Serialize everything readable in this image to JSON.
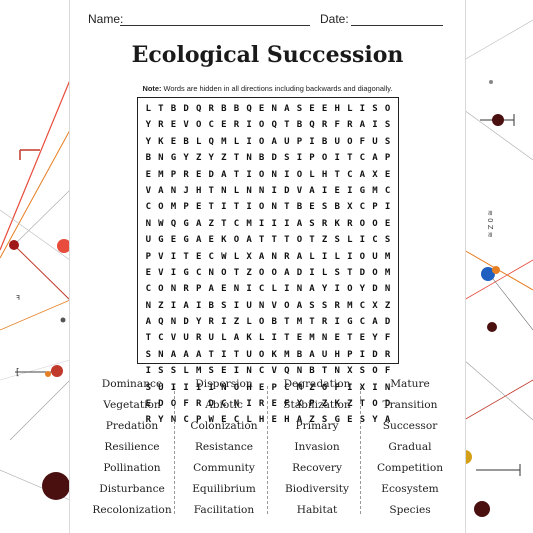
{
  "header": {
    "name_label": "Name:",
    "date_label": "Date:"
  },
  "title": "Ecological Succession",
  "note": {
    "prefix": "Note:",
    "text": " Words are hidden in all directions including backwards and diagonally."
  },
  "grid": [
    "LTBDQRBBQENASEEHLISO",
    "YREVOCERIOQTBQRFRAIS",
    "YKEBLQMLIOAUPIBUOFUS",
    "BNGYZYZTNBDSIPOITCAP",
    "EMPREDATIONIOLHTCAXE",
    "VANJHTNLNNIDVAIEIGMC",
    "COMPETITIONTBESBXCPI",
    "NWQGAZTCMIIIASRKROOE",
    "UGEGAEKOATTTOTZSLICS",
    "PVITECWLXANRALILIOUM",
    "EVIGCNOTZOOADILSTDOM",
    "CONRPAENICLINAYIOYDN",
    "NZIAIBSIUNVOASSRMCXZ",
    "AQNDYRIZLOBTMTRIGCAD",
    "TCVURULAKLITEMNETEYF",
    "SNAAATITUOKMBAUHPIDR",
    "ISSLMSEINCVQNBTNXSOF",
    "SUIIIINOHEPCMZOFIXIN",
    "EDOFRDCNIREFXPZKZTOD",
    "RYNCPWECLHEHAZSGESYA"
  ],
  "words": [
    [
      "Dominance",
      "Vegetation",
      "Predation",
      "Resilience",
      "Pollination",
      "Disturbance",
      "Recolonization"
    ],
    [
      "Dispersion",
      "Abiotic",
      "Colonization",
      "Resistance",
      "Community",
      "Equilibrium",
      "Facilitation"
    ],
    [
      "Degradation",
      "Stabilization",
      "Primary",
      "Invasion",
      "Recovery",
      "Biodiversity",
      "Habitat"
    ],
    [
      "Mature",
      "Transition",
      "Successor",
      "Gradual",
      "Competition",
      "Ecosystem",
      "Species"
    ]
  ],
  "colors": {
    "accent_red": "#c0392b",
    "accent_orange": "#e67e22",
    "accent_dark": "#3b0f0f",
    "accent_blue": "#1f5fbf",
    "accent_gold": "#d4a017"
  }
}
